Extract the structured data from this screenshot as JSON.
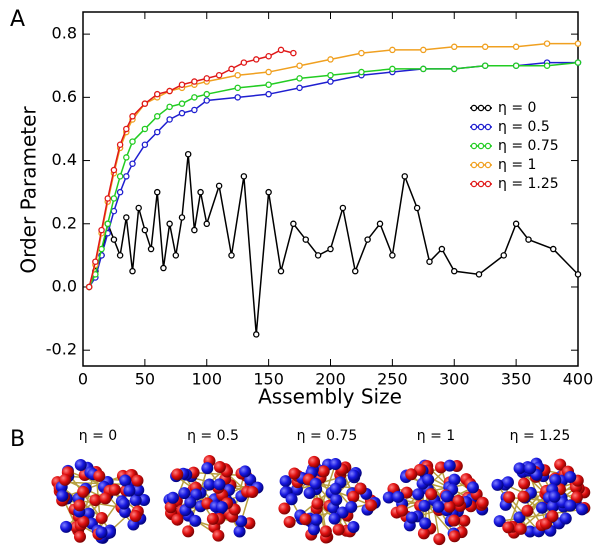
{
  "chart_data": {
    "type": "line",
    "panel_label": "A",
    "x_label": "Assembly Size",
    "y_label": "Order Parameter",
    "xlim": [
      0,
      400
    ],
    "ylim": [
      -0.25,
      0.87
    ],
    "xticks": [
      0,
      50,
      100,
      150,
      200,
      250,
      300,
      350,
      400
    ],
    "yticks": [
      -0.2,
      {
        "value": 0,
        "label": "0.0"
      },
      0.2,
      0.4,
      0.6,
      0.8
    ],
    "legend": "right",
    "series": [
      {
        "name": "η = 0",
        "color": "#000000",
        "x": [
          5,
          10,
          15,
          20,
          25,
          30,
          35,
          40,
          45,
          50,
          55,
          60,
          65,
          70,
          75,
          80,
          85,
          90,
          95,
          100,
          110,
          120,
          130,
          140,
          150,
          160,
          170,
          180,
          190,
          200,
          210,
          220,
          230,
          240,
          250,
          260,
          270,
          280,
          290,
          300,
          320,
          340,
          350,
          360,
          380,
          400
        ],
        "values": [
          0,
          0.05,
          0.1,
          0.2,
          0.15,
          0.1,
          0.22,
          0.05,
          0.25,
          0.18,
          0.12,
          0.3,
          0.06,
          0.2,
          0.1,
          0.22,
          0.42,
          0.18,
          0.3,
          0.2,
          0.32,
          0.1,
          0.35,
          -0.15,
          0.3,
          0.05,
          0.2,
          0.15,
          0.1,
          0.12,
          0.25,
          0.05,
          0.15,
          0.2,
          0.1,
          0.35,
          0.25,
          0.08,
          0.12,
          0.05,
          0.04,
          0.1,
          0.2,
          0.15,
          0.12,
          0.04
        ]
      },
      {
        "name": "η = 0.5",
        "color": "#1f1fd0",
        "x": [
          5,
          10,
          15,
          20,
          25,
          30,
          35,
          40,
          50,
          60,
          70,
          80,
          90,
          100,
          125,
          150,
          175,
          200,
          225,
          250,
          275,
          300,
          325,
          350,
          375,
          400
        ],
        "values": [
          0,
          0.03,
          0.1,
          0.17,
          0.24,
          0.3,
          0.35,
          0.39,
          0.45,
          0.49,
          0.53,
          0.55,
          0.56,
          0.59,
          0.6,
          0.61,
          0.63,
          0.65,
          0.67,
          0.68,
          0.69,
          0.69,
          0.7,
          0.7,
          0.71,
          0.71
        ]
      },
      {
        "name": "η = 0.75",
        "color": "#22cc22",
        "x": [
          5,
          10,
          15,
          20,
          25,
          30,
          35,
          40,
          50,
          60,
          70,
          80,
          90,
          100,
          125,
          150,
          175,
          200,
          225,
          250,
          275,
          300,
          325,
          350,
          375,
          400
        ],
        "values": [
          0,
          0.04,
          0.12,
          0.2,
          0.28,
          0.35,
          0.41,
          0.46,
          0.5,
          0.54,
          0.57,
          0.58,
          0.6,
          0.61,
          0.63,
          0.64,
          0.66,
          0.67,
          0.68,
          0.69,
          0.69,
          0.69,
          0.7,
          0.7,
          0.7,
          0.71
        ]
      },
      {
        "name": "η = 1",
        "color": "#f0a020",
        "x": [
          5,
          10,
          15,
          20,
          25,
          30,
          35,
          40,
          50,
          60,
          70,
          80,
          90,
          100,
          125,
          150,
          175,
          200,
          225,
          250,
          275,
          300,
          325,
          350,
          375,
          400
        ],
        "values": [
          0,
          0.07,
          0.17,
          0.27,
          0.36,
          0.44,
          0.49,
          0.53,
          0.58,
          0.6,
          0.62,
          0.63,
          0.64,
          0.65,
          0.67,
          0.68,
          0.7,
          0.72,
          0.74,
          0.75,
          0.75,
          0.76,
          0.76,
          0.76,
          0.77,
          0.77
        ]
      },
      {
        "name": "η = 1.25",
        "color": "#e01818",
        "x": [
          5,
          10,
          15,
          20,
          25,
          30,
          35,
          40,
          50,
          60,
          70,
          80,
          90,
          100,
          110,
          120,
          130,
          140,
          150,
          160,
          170
        ],
        "values": [
          0,
          0.08,
          0.18,
          0.28,
          0.37,
          0.45,
          0.5,
          0.54,
          0.58,
          0.61,
          0.62,
          0.64,
          0.65,
          0.66,
          0.67,
          0.69,
          0.71,
          0.72,
          0.73,
          0.75,
          0.74
        ]
      }
    ]
  },
  "panel_b": {
    "panel_label": "B",
    "labels": [
      "η = 0",
      "η = 0.5",
      "η = 0.75",
      "η = 1",
      "η = 1.25"
    ]
  }
}
